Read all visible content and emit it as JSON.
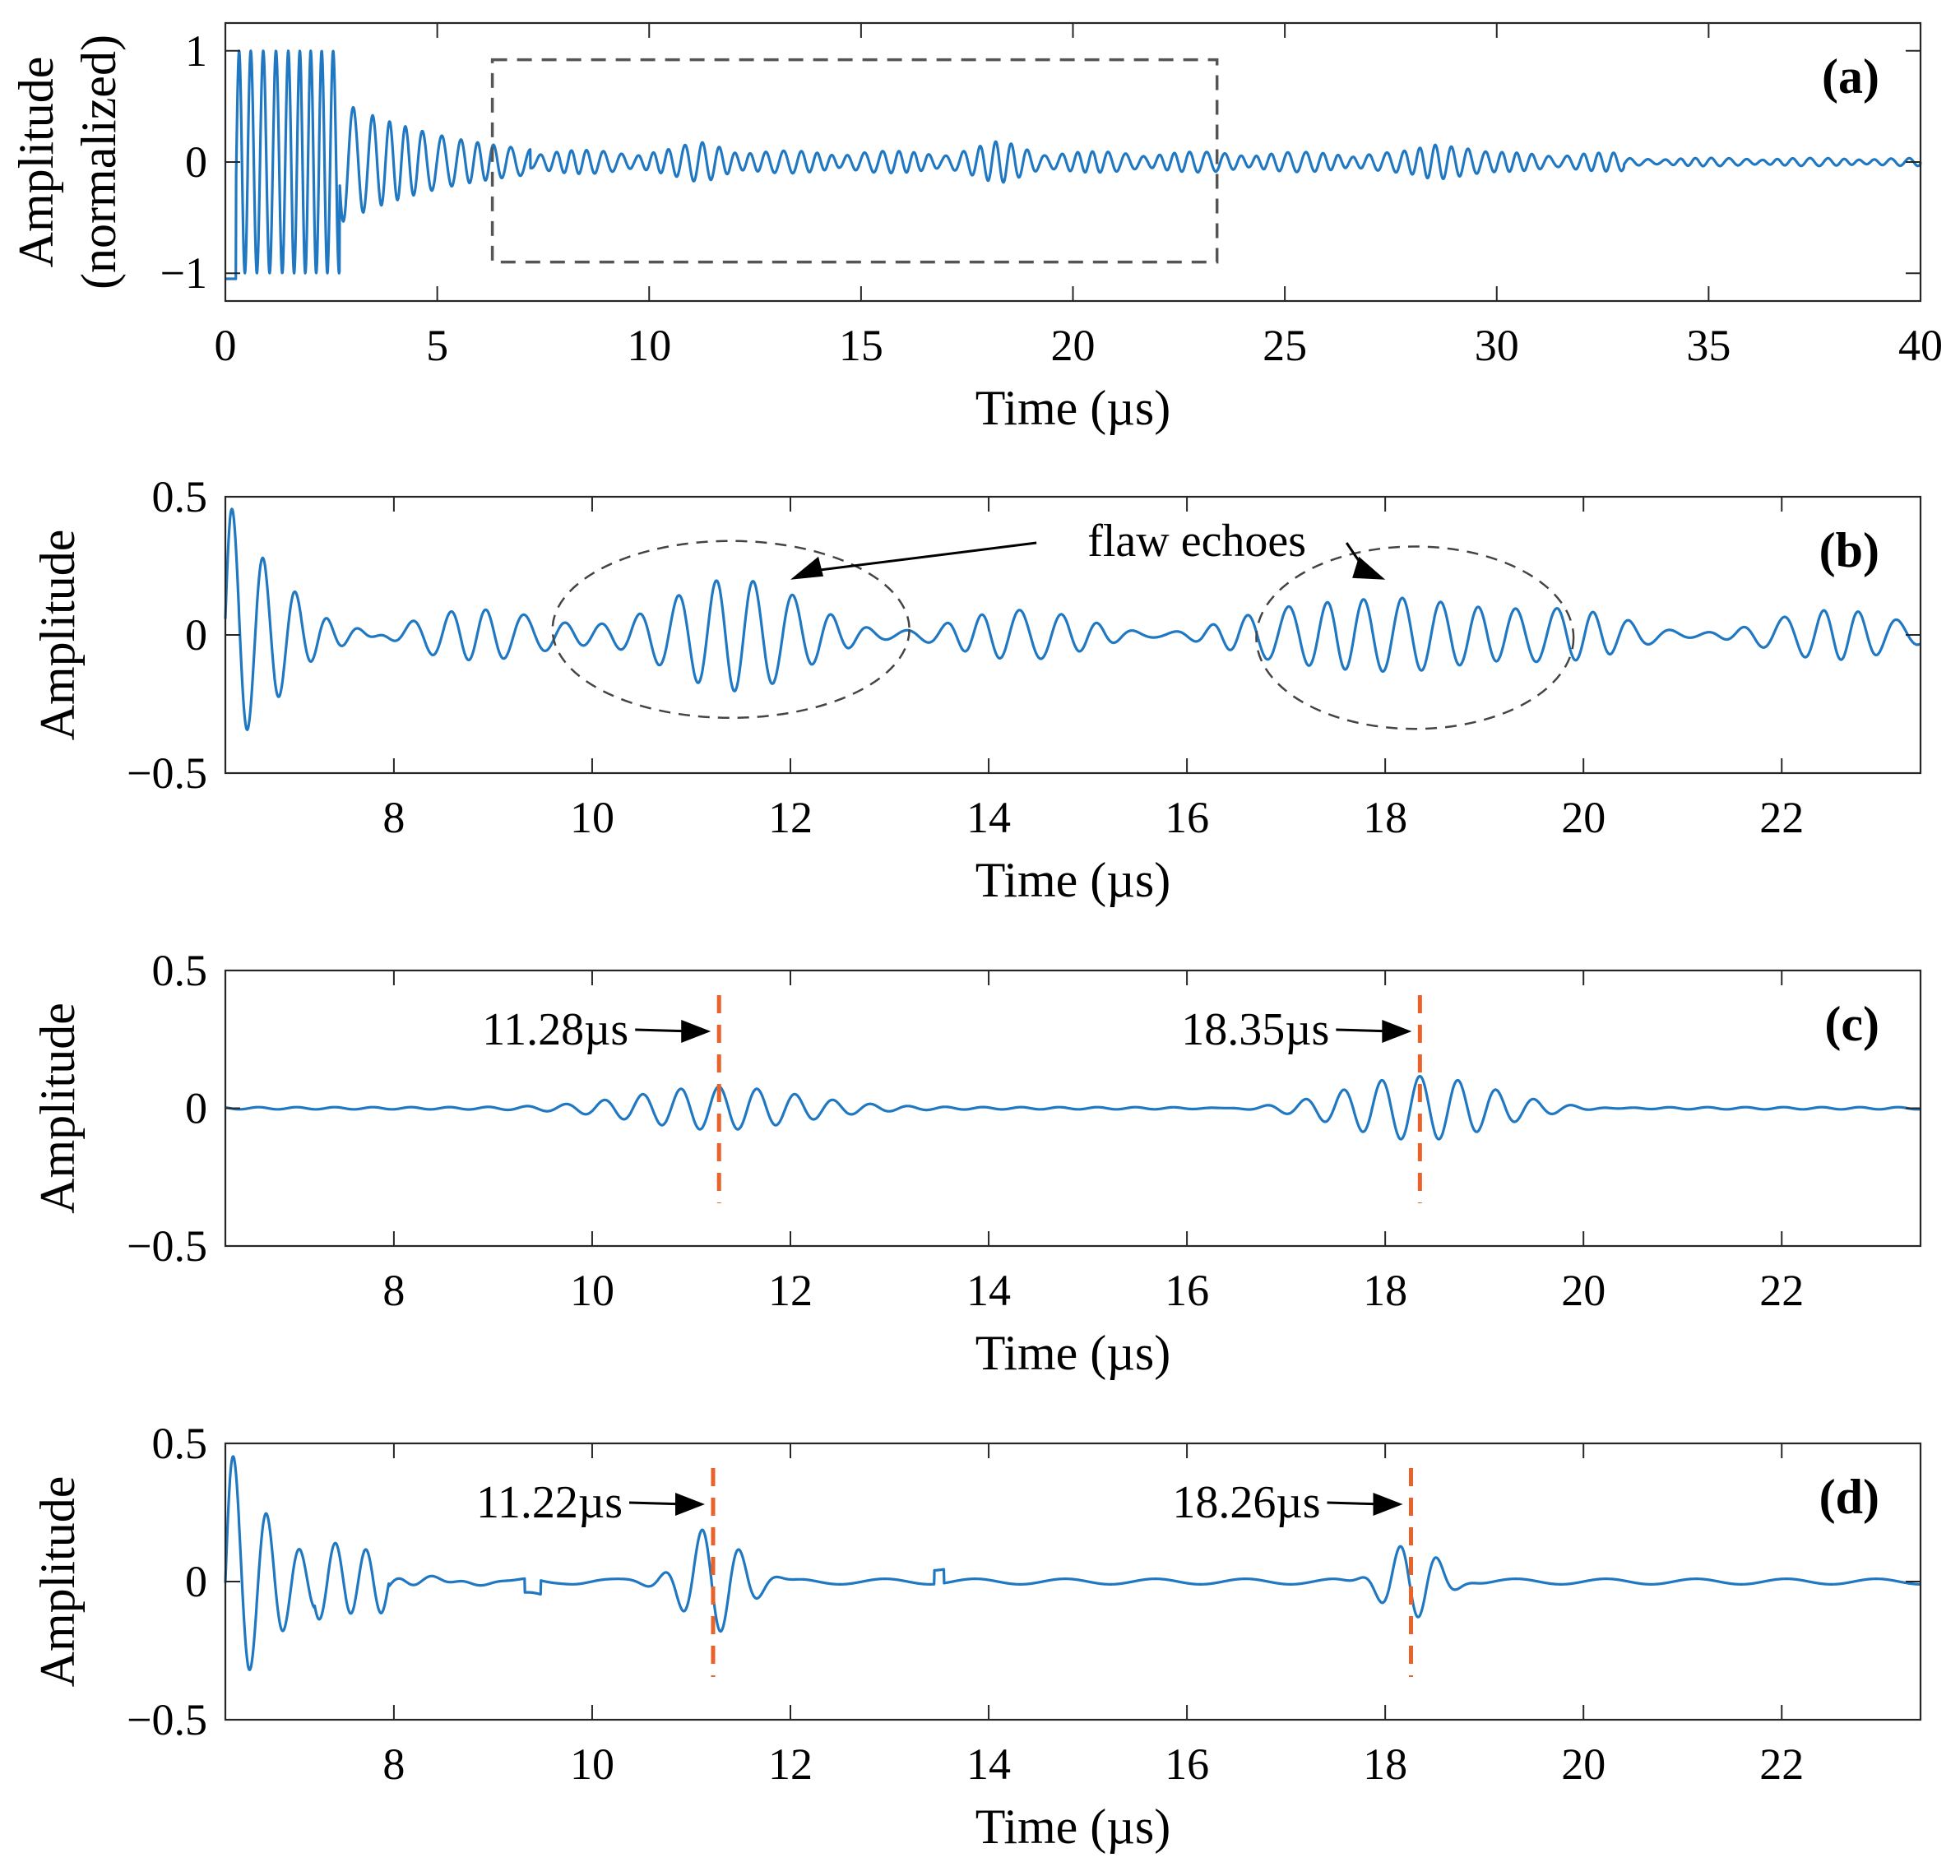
{
  "chart_data": [
    {
      "id": "a",
      "type": "line",
      "panel_label": "(a)",
      "xlabel": "Time (µs)",
      "ylabel": [
        "Amplitude",
        "(normalized)"
      ],
      "xlim": [
        0,
        40
      ],
      "ylim": [
        -1.25,
        1.25
      ],
      "xticks": [
        0,
        5,
        10,
        15,
        20,
        25,
        30,
        35,
        40
      ],
      "yticks": [
        -1,
        0,
        1
      ],
      "ytick_labels": [
        "−1",
        "0",
        "1"
      ],
      "series": [
        {
          "segments": [
            {
              "t0": 0.25,
              "t1": 2.7,
              "amp": 1.0,
              "freq": 3.6,
              "decay": 0.0
            },
            {
              "t0": 2.7,
              "t1": 7.2,
              "amp": 0.55,
              "freq": 2.4,
              "decay": 0.35
            },
            {
              "t0": 7.2,
              "t1": 40,
              "amp": 0.09,
              "freq": 2.6,
              "decay": 0.01
            }
          ],
          "bursts": [
            {
              "t": 11.3,
              "amp": 0.08
            },
            {
              "t": 18.3,
              "amp": 0.09
            },
            {
              "t": 28.8,
              "amp": 0.1
            }
          ]
        }
      ],
      "zoom_box": {
        "x": [
          6.3,
          23.4
        ],
        "y": [
          -0.9,
          0.92
        ]
      }
    },
    {
      "id": "b",
      "type": "line",
      "panel_label": "(b)",
      "xlabel": "Time (µs)",
      "ylabel": [
        "Amplitude"
      ],
      "xlim": [
        6.3,
        23.4
      ],
      "ylim": [
        -0.5,
        0.5
      ],
      "xticks": [
        8,
        10,
        12,
        14,
        16,
        18,
        20,
        22
      ],
      "yticks": [
        -0.5,
        0,
        0.5
      ],
      "ytick_labels": [
        "−0.5",
        "0",
        "0.5"
      ],
      "series": [
        {
          "initial": {
            "t": 6.5,
            "amp": 0.38
          },
          "noise_amp": 0.09,
          "bursts": [
            {
              "t": 11.3,
              "amp": 0.12,
              "width": 1.3
            },
            {
              "t": 18.3,
              "amp": 0.12,
              "width": 1.1
            }
          ],
          "freq": 2.6
        }
      ],
      "annotation": {
        "text": "flaw echoes"
      },
      "ellipses": [
        {
          "cx": 11.4,
          "cy": 0.02,
          "rx": 1.8,
          "ry": 0.32
        },
        {
          "cx": 18.3,
          "cy": -0.01,
          "rx": 1.6,
          "ry": 0.33
        }
      ]
    },
    {
      "id": "c",
      "type": "line",
      "panel_label": "(c)",
      "xlabel": "Time (µs)",
      "ylabel": [
        "Amplitude"
      ],
      "xlim": [
        6.3,
        23.4
      ],
      "ylim": [
        -0.5,
        0.5
      ],
      "xticks": [
        8,
        10,
        12,
        14,
        16,
        18,
        20,
        22
      ],
      "yticks": [
        -0.5,
        0,
        0.5
      ],
      "ytick_labels": [
        "−0.5",
        "0",
        "0.5"
      ],
      "series": [
        {
          "bursts": [
            {
              "t": 11.28,
              "amp": 0.075,
              "width": 0.8
            },
            {
              "t": 18.35,
              "amp": 0.12,
              "width": 0.75
            }
          ],
          "freq": 2.6
        }
      ],
      "markers": [
        {
          "t": 11.28,
          "label": "11.28µs"
        },
        {
          "t": 18.35,
          "label": "18.35µs"
        }
      ]
    },
    {
      "id": "d",
      "type": "line",
      "panel_label": "(d)",
      "xlabel": "Time (µs)",
      "ylabel": [
        "Amplitude"
      ],
      "xlim": [
        6.3,
        23.4
      ],
      "ylim": [
        -0.5,
        0.5
      ],
      "xticks": [
        8,
        10,
        12,
        14,
        16,
        18,
        20,
        22
      ],
      "yticks": [
        -0.5,
        0,
        0.5
      ],
      "ytick_labels": [
        "−0.5",
        "0",
        "0.5"
      ],
      "series": [
        {
          "initial": {
            "t": 6.5,
            "amp": 0.36
          },
          "bursts": [
            {
              "t": 11.22,
              "amp": 0.16,
              "width": 0.28
            },
            {
              "t": 18.26,
              "amp": 0.12,
              "width": 0.24
            }
          ],
          "freq": 2.6
        }
      ],
      "markers": [
        {
          "t": 11.22,
          "label": "11.22µs"
        },
        {
          "t": 18.26,
          "label": "18.26µs"
        }
      ]
    }
  ]
}
